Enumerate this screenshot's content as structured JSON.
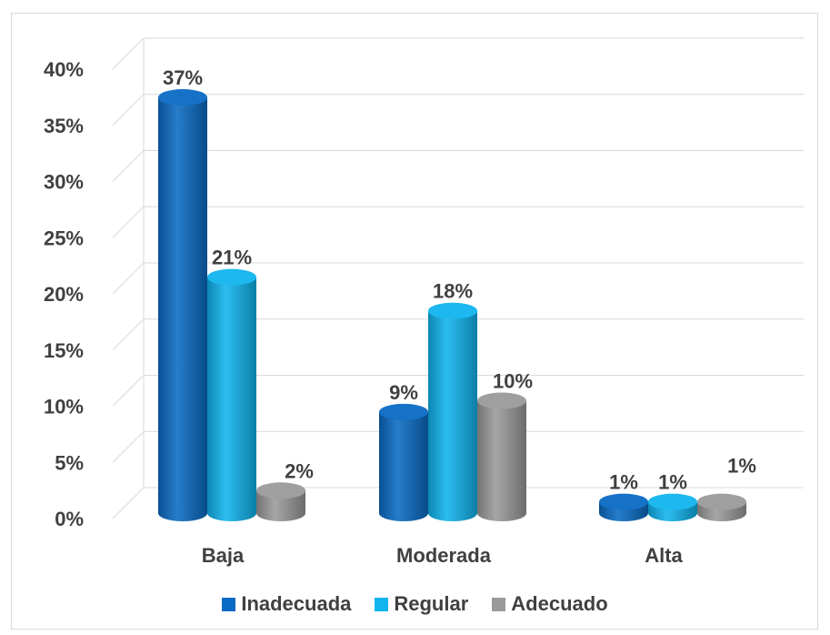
{
  "chart_data": {
    "type": "bar",
    "title": "",
    "xlabel": "",
    "ylabel": "",
    "categories": [
      "Baja",
      "Moderada",
      "Alta"
    ],
    "series": [
      {
        "name": "Inadecuada",
        "values": [
          37,
          9,
          1
        ],
        "labels": [
          "37%",
          "9%",
          "1%"
        ],
        "color": "#0a6bc4"
      },
      {
        "name": "Regular",
        "values": [
          21,
          18,
          1
        ],
        "labels": [
          "21%",
          "18%",
          "1%"
        ],
        "color": "#10b4ee"
      },
      {
        "name": "Adecuado",
        "values": [
          2,
          10,
          1
        ],
        "labels": [
          "2%",
          "10%",
          "1%"
        ],
        "color": "#9a9a9a"
      }
    ],
    "ylim": [
      0,
      40
    ],
    "yticks": [
      "0%",
      "5%",
      "10%",
      "15%",
      "20%",
      "25%",
      "30%",
      "35%",
      "40%"
    ],
    "grid": true,
    "legend_position": "bottom",
    "style": "3d-cylinder"
  }
}
